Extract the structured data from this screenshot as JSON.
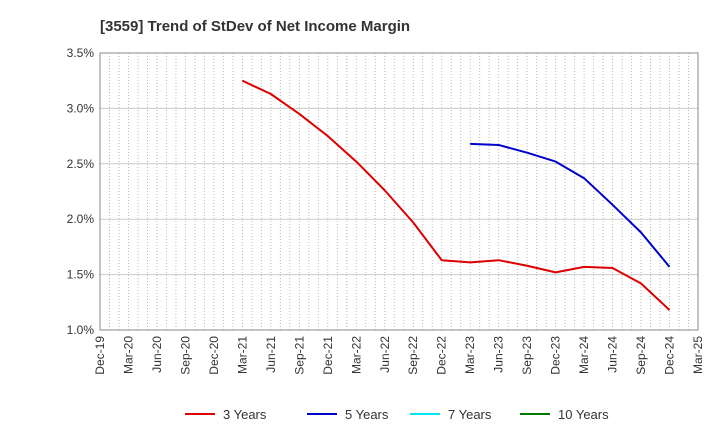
{
  "chart_data": {
    "type": "line",
    "title": "[3559]  Trend of StDev of Net Income Margin",
    "xlabel": "",
    "ylabel": "",
    "x_ticks": [
      "Dec-19",
      "Mar-20",
      "Jun-20",
      "Sep-20",
      "Dec-20",
      "Mar-21",
      "Jun-21",
      "Sep-21",
      "Dec-21",
      "Mar-22",
      "Jun-22",
      "Sep-22",
      "Dec-22",
      "Mar-23",
      "Jun-23",
      "Sep-23",
      "Dec-23",
      "Mar-24",
      "Jun-24",
      "Sep-24",
      "Dec-24",
      "Mar-25"
    ],
    "y_ticks": [
      "1.0%",
      "1.5%",
      "2.0%",
      "2.5%",
      "3.0%",
      "3.5%"
    ],
    "ylim": [
      1.0,
      3.5
    ],
    "grid": "vertical dotted",
    "legend_position": "bottom",
    "series": [
      {
        "name": "3 Years",
        "color": "#dd0000",
        "x": [
          "Mar-21",
          "Jun-21",
          "Sep-21",
          "Dec-21",
          "Mar-22",
          "Jun-22",
          "Sep-22",
          "Dec-22",
          "Mar-23",
          "Jun-23",
          "Sep-23",
          "Dec-23",
          "Mar-24",
          "Jun-24",
          "Sep-24",
          "Dec-24"
        ],
        "values": [
          3.25,
          3.13,
          2.95,
          2.75,
          2.52,
          2.26,
          1.97,
          1.63,
          1.61,
          1.63,
          1.58,
          1.52,
          1.57,
          1.56,
          1.42,
          1.18
        ]
      },
      {
        "name": "5 Years",
        "color": "#0000cc",
        "x": [
          "Mar-23",
          "Jun-23",
          "Sep-23",
          "Dec-23",
          "Mar-24",
          "Jun-24",
          "Sep-24",
          "Dec-24"
        ],
        "values": [
          2.68,
          2.67,
          2.6,
          2.52,
          2.37,
          2.13,
          1.88,
          1.57
        ]
      },
      {
        "name": "7 Years",
        "color": "#00e5ee",
        "x": [],
        "values": []
      },
      {
        "name": "10 Years",
        "color": "#007700",
        "x": [],
        "values": []
      }
    ]
  }
}
